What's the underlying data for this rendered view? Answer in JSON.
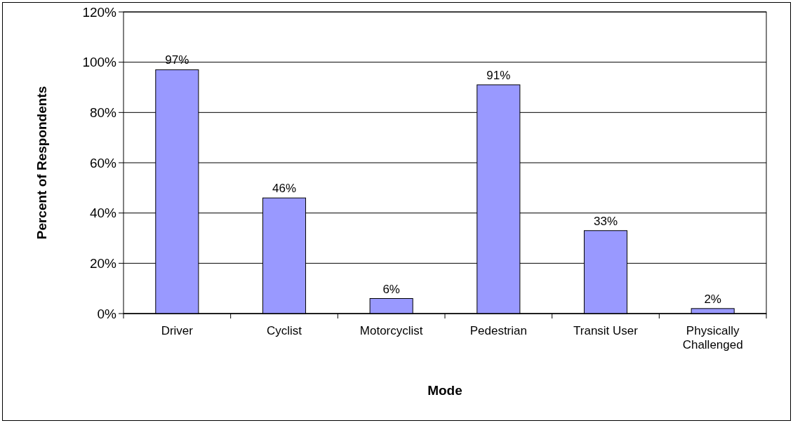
{
  "chart_data": {
    "type": "bar",
    "xlabel": "Mode",
    "ylabel": "Percent of Respondents",
    "categories": [
      "Driver",
      "Cyclist",
      "Motorcyclist",
      "Pedestrian",
      "Transit User",
      "Physically Challenged"
    ],
    "values": [
      97,
      46,
      6,
      91,
      33,
      2
    ],
    "value_labels": [
      "97%",
      "46%",
      "6%",
      "91%",
      "33%",
      "2%"
    ],
    "color": "#9999ff",
    "ylim": [
      0,
      120
    ],
    "yticks": [
      {
        "value": 0,
        "label": "0%"
      },
      {
        "value": 20,
        "label": "20%"
      },
      {
        "value": 40,
        "label": "40%"
      },
      {
        "value": 60,
        "label": "60%"
      },
      {
        "value": 80,
        "label": "80%"
      },
      {
        "value": 100,
        "label": "100%"
      },
      {
        "value": 120,
        "label": "120%"
      }
    ],
    "grid": "y"
  }
}
